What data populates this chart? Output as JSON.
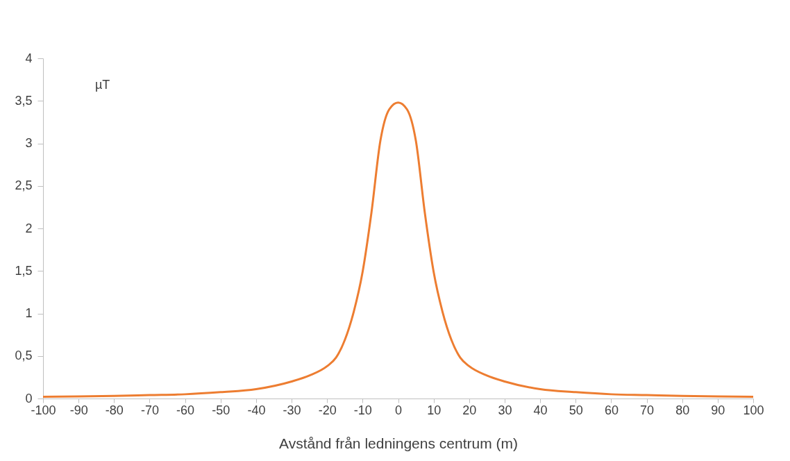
{
  "chart_data": {
    "type": "line",
    "xlabel": "Avstånd från ledningens centrum (m)",
    "ylabel": "µT",
    "x": [
      -100,
      -90,
      -80,
      -70,
      -60,
      -50,
      -40,
      -30,
      -25,
      -20,
      -17.5,
      -15,
      -12.5,
      -10,
      -7.5,
      -5,
      -2.5,
      0,
      2.5,
      5,
      7.5,
      10,
      12.5,
      15,
      17.5,
      20,
      25,
      30,
      40,
      50,
      60,
      70,
      80,
      90,
      100
    ],
    "series": [
      {
        "color": "#ed7d31",
        "values": [
          0.02,
          0.025,
          0.03,
          0.04,
          0.05,
          0.075,
          0.11,
          0.2,
          0.27,
          0.38,
          0.48,
          0.69,
          1.02,
          1.49,
          2.19,
          3.03,
          3.4,
          3.48,
          3.4,
          3.03,
          2.19,
          1.49,
          1.02,
          0.69,
          0.48,
          0.38,
          0.27,
          0.2,
          0.11,
          0.075,
          0.05,
          0.04,
          0.03,
          0.025,
          0.02
        ]
      }
    ],
    "xlim": [
      -100,
      100
    ],
    "xticks": [
      -100,
      -90,
      -80,
      -70,
      -60,
      -50,
      -40,
      -30,
      -20,
      -10,
      0,
      10,
      20,
      30,
      40,
      50,
      60,
      70,
      80,
      90,
      100
    ],
    "ylim": [
      0,
      4
    ],
    "yticks": [
      0,
      {
        "value": 0.5,
        "label": "0,5"
      },
      1,
      {
        "value": 1.5,
        "label": "1,5"
      },
      2,
      {
        "value": 2.5,
        "label": "2,5"
      },
      3,
      {
        "value": 3.5,
        "label": "3,5"
      },
      4
    ],
    "grid": false,
    "legend": false,
    "marker": "none",
    "line_style": "solid"
  }
}
